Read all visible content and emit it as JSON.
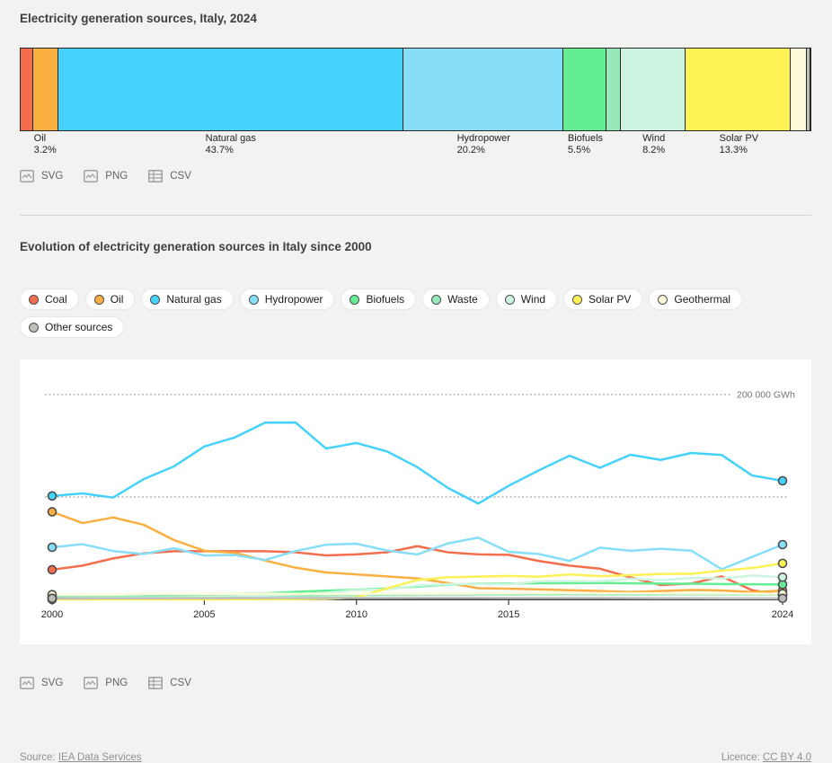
{
  "header": {
    "bar_title": "Electricity generation sources, Italy, 2024",
    "line_title": "Evolution of electricity generation sources in Italy since 2000"
  },
  "downloads": {
    "svg": "SVG",
    "png": "PNG",
    "csv": "CSV"
  },
  "footer": {
    "source_label": "Source:",
    "source_link": "IEA Data Services",
    "licence_label": "Licence:",
    "licence_link": "CC BY 4.0"
  },
  "style_colors": {
    "marker_ring": "#4d4d4d",
    "axis": "#141414",
    "grid": "#8f8f8f",
    "grid_label": "#757575",
    "tick_label": "#262626"
  },
  "chart_data": [
    {
      "type": "bar",
      "orientation": "horizontal-stacked",
      "title": "Electricity generation sources, Italy, 2024",
      "unit": "% of electricity generation",
      "segments": [
        {
          "name": "Coal",
          "percent": 1.6,
          "color": "#F46D4D",
          "label": false
        },
        {
          "name": "Oil",
          "percent": 3.2,
          "color": "#FAB040",
          "label": true
        },
        {
          "name": "Natural gas",
          "percent": 43.7,
          "color": "#45D2FA",
          "label": true
        },
        {
          "name": "Hydropower",
          "percent": 20.2,
          "color": "#87DEF8",
          "label": true
        },
        {
          "name": "Biofuels",
          "percent": 5.5,
          "color": "#63EE94",
          "label": true
        },
        {
          "name": "Waste",
          "percent": 1.8,
          "color": "#97E9B9",
          "label": false
        },
        {
          "name": "Wind",
          "percent": 8.2,
          "color": "#CDF4E0",
          "label": true
        },
        {
          "name": "Solar PV",
          "percent": 13.3,
          "color": "#FEF155",
          "label": true
        },
        {
          "name": "Geothermal",
          "percent": 2.1,
          "color": "#FEFAD9",
          "label": false
        },
        {
          "name": "Other sources",
          "percent": 0.4,
          "color": "#BDBFBB",
          "label": false
        }
      ]
    },
    {
      "type": "line",
      "title": "Evolution of electricity generation sources in Italy since 2000",
      "unit": "GWh",
      "x": [
        2000,
        2001,
        2002,
        2003,
        2004,
        2005,
        2006,
        2007,
        2008,
        2009,
        2010,
        2011,
        2012,
        2013,
        2014,
        2015,
        2016,
        2017,
        2018,
        2019,
        2020,
        2021,
        2022,
        2023,
        2024
      ],
      "xticks": [
        2000,
        2005,
        2010,
        2015,
        2024
      ],
      "ylim": [
        0,
        234000
      ],
      "gridlines": [
        {
          "gwh": 100000,
          "label": ""
        },
        {
          "gwh": 200000,
          "label": "200 000 GWh"
        }
      ],
      "legend_position": "top",
      "series": [
        {
          "name": "Coal",
          "color": "#F46D4D",
          "values": [
            29000,
            33000,
            40000,
            45000,
            47000,
            47000,
            47000,
            47000,
            46000,
            43000,
            44000,
            46000,
            52000,
            46000,
            44000,
            43500,
            37500,
            33000,
            30000,
            21500,
            14000,
            15500,
            22500,
            9000,
            4200
          ]
        },
        {
          "name": "Oil",
          "color": "#FAB040",
          "values": [
            85500,
            74500,
            80000,
            73000,
            58000,
            47500,
            45500,
            38000,
            31000,
            26300,
            24500,
            22500,
            20500,
            16000,
            11000,
            10500,
            9800,
            9000,
            8200,
            7200,
            8200,
            9200,
            8800,
            7200,
            8500
          ]
        },
        {
          "name": "Natural gas",
          "color": "#45D2FA",
          "values": [
            101000,
            103500,
            99400,
            117300,
            129800,
            149300,
            158100,
            172600,
            172700,
            147300,
            152700,
            144500,
            129100,
            108900,
            93600,
            110900,
            126100,
            140300,
            128500,
            141200,
            136200,
            143000,
            141000,
            121000,
            115800
          ]
        },
        {
          "name": "Hydropower",
          "color": "#87DEF8",
          "values": [
            50900,
            53900,
            47300,
            44300,
            49900,
            42900,
            43400,
            38500,
            47200,
            53400,
            54400,
            47800,
            43900,
            54700,
            60300,
            46500,
            44300,
            37600,
            50500,
            47500,
            49500,
            47600,
            29500,
            41500,
            53500
          ]
        },
        {
          "name": "Biofuels",
          "color": "#63EE94",
          "values": [
            1200,
            1700,
            2300,
            3100,
            4200,
            4900,
            5600,
            5900,
            7500,
            8600,
            9400,
            10800,
            12500,
            14500,
            15500,
            15500,
            15800,
            15900,
            16000,
            15800,
            15500,
            15300,
            15000,
            14800,
            14600
          ]
        },
        {
          "name": "Waste",
          "color": "#97E9B9",
          "values": [
            2300,
            2500,
            2700,
            2900,
            3100,
            3300,
            3500,
            3600,
            3700,
            4000,
            4200,
            4400,
            4500,
            4600,
            4700,
            4800,
            4900,
            4900,
            4900,
            4800,
            4800,
            4900,
            4800,
            4800,
            4800
          ]
        },
        {
          "name": "Wind",
          "color": "#CDF4E0",
          "values": [
            600,
            1200,
            1400,
            1500,
            1850,
            2350,
            3000,
            4000,
            4900,
            6500,
            9100,
            9900,
            13400,
            14900,
            15200,
            14850,
            17700,
            17750,
            17700,
            20200,
            18800,
            20900,
            20500,
            23400,
            21700
          ]
        },
        {
          "name": "Solar PV",
          "color": "#FEF155",
          "values": [
            20,
            25,
            30,
            35,
            40,
            50,
            60,
            80,
            200,
            680,
            1900,
            10800,
            18900,
            21600,
            22300,
            22900,
            22100,
            24400,
            22700,
            23700,
            24900,
            25000,
            28100,
            30700,
            35200
          ]
        },
        {
          "name": "Geothermal",
          "color": "#FEFAD9",
          "values": [
            4700,
            4500,
            4700,
            5340,
            5440,
            5330,
            5530,
            5570,
            5520,
            5340,
            5380,
            5650,
            5590,
            5660,
            5920,
            6190,
            6290,
            6200,
            6100,
            6080,
            6030,
            5910,
            5840,
            5700,
            5600
          ]
        },
        {
          "name": "Other sources",
          "color": "#BDBFBB",
          "values": [
            1000,
            1000,
            1100,
            1100,
            1200,
            1200,
            1300,
            1300,
            1300,
            1400,
            1400,
            1400,
            1500,
            1500,
            1500,
            1400,
            1400,
            1400,
            1400,
            1300,
            1200,
            1200,
            1100,
            1100,
            1100
          ]
        }
      ]
    }
  ]
}
